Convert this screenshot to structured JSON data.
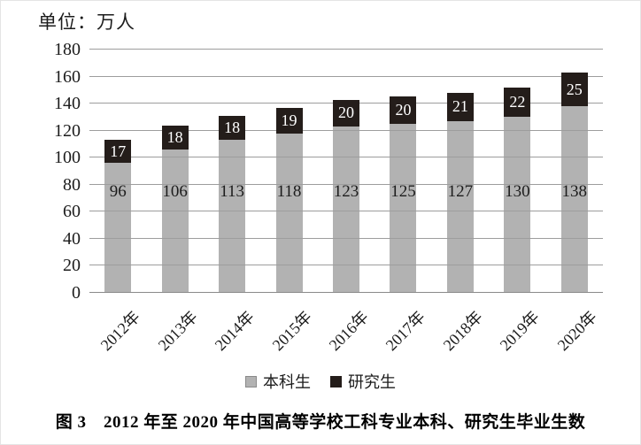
{
  "unit_label": "单位：万人",
  "caption": "图 3　2012 年至 2020 年中国高等学校工科专业本科、研究生毕业生数",
  "legend": [
    {
      "label": "本科生",
      "color": "#b2b2b2"
    },
    {
      "label": "研究生",
      "color": "#241d1a"
    }
  ],
  "colors": {
    "undergrad_bar": "#b2b2b2",
    "grad_bar": "#241d1a",
    "gridline": "#9d9d9d",
    "background": "#ffffff"
  },
  "chart_data": {
    "type": "bar",
    "stacked": true,
    "title": "图 3　2012 年至 2020 年中国高等学校工科专业本科、研究生毕业生数",
    "unit": "万人",
    "categories": [
      "2012年",
      "2013年",
      "2014年",
      "2015年",
      "2016年",
      "2017年",
      "2018年",
      "2019年",
      "2020年"
    ],
    "series": [
      {
        "name": "本科生",
        "color": "#b2b2b2",
        "values": [
          96,
          106,
          113,
          118,
          123,
          125,
          127,
          130,
          138
        ]
      },
      {
        "name": "研究生",
        "color": "#241d1a",
        "values": [
          17,
          18,
          18,
          19,
          20,
          20,
          21,
          22,
          25
        ]
      }
    ],
    "ylim": [
      0,
      180
    ],
    "ytick_step": 20,
    "xlabel": "",
    "ylabel": "单位：万人",
    "grid": true,
    "legend_position": "bottom"
  }
}
